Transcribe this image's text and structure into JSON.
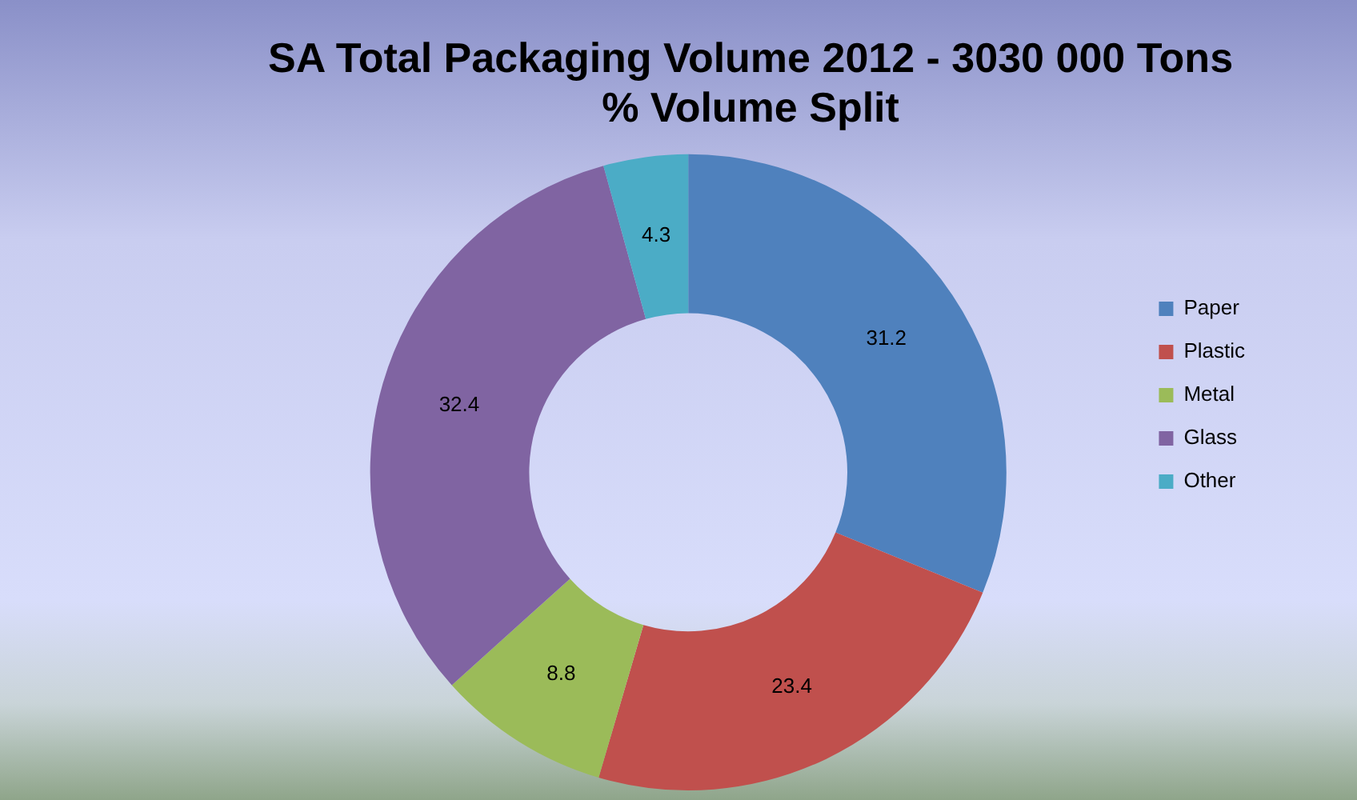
{
  "chart_data": {
    "type": "donut",
    "title": "SA Total Packaging Volume 2012 - 3030 000 Tons\n% Volume Split",
    "categories": [
      "Paper",
      "Plastic",
      "Metal",
      "Glass",
      "Other"
    ],
    "values": [
      31.2,
      23.4,
      8.8,
      32.4,
      4.3
    ],
    "colors": [
      "#4f81bd",
      "#c0504d",
      "#9bbb59",
      "#8064a2",
      "#4bacc6"
    ],
    "data_labels": true,
    "legend": "right"
  }
}
